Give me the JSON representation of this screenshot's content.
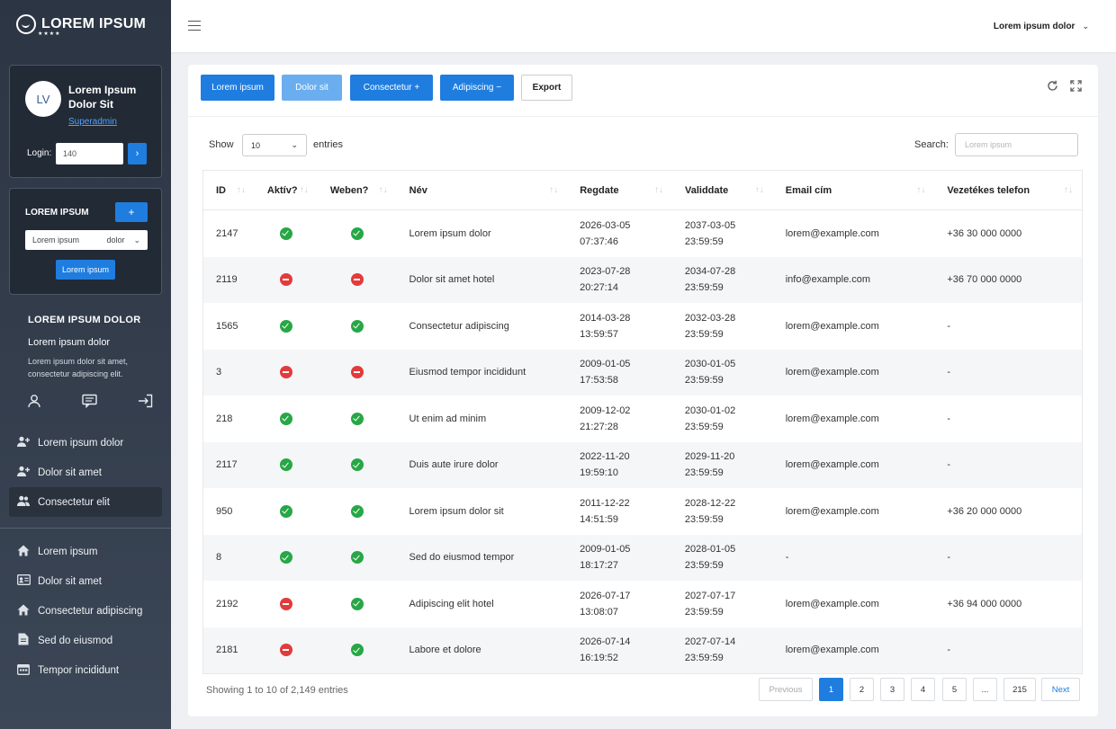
{
  "brand": {
    "name": "LOREM IPSUM",
    "stars": "★★★★"
  },
  "profile": {
    "initials": "LV",
    "name": "Lorem Ipsum Dolor Sit",
    "role": "Superadmin",
    "login_label": "Login:",
    "login_value": "140",
    "login_go": "›"
  },
  "filter": {
    "title": "LOREM IPSUM",
    "add_label": "+",
    "select_left": "Lorem ipsum",
    "select_right": "dolor",
    "button": "Lorem ipsum"
  },
  "side_info": {
    "heading": "LOREM IPSUM DOLOR",
    "sub": "Lorem ipsum dolor",
    "desc": "Lorem ipsum dolor sit amet, consectetur adipiscing elit."
  },
  "side_icons": [
    "user-icon",
    "message-icon",
    "logout-icon"
  ],
  "nav_top": [
    {
      "label": "Lorem ipsum dolor",
      "icon": "user-plus-icon",
      "active": false
    },
    {
      "label": "Dolor sit amet",
      "icon": "user-plus-icon",
      "active": false
    },
    {
      "label": "Consectetur elit",
      "icon": "users-icon",
      "active": true
    }
  ],
  "nav_bottom": [
    {
      "label": "Lorem ipsum",
      "icon": "home-icon"
    },
    {
      "label": "Dolor sit amet",
      "icon": "id-card-icon"
    },
    {
      "label": "Consectetur adipiscing",
      "icon": "home-icon"
    },
    {
      "label": "Sed do eiusmod",
      "icon": "document-icon"
    },
    {
      "label": "Tempor incididunt",
      "icon": "calendar-icon"
    }
  ],
  "topbar": {
    "user_menu": "Lorem ipsum dolor"
  },
  "toolbar": {
    "btn1": "Lorem ipsum",
    "btn2": "Dolor sit",
    "btn3": "Consectetur  +",
    "btn4": "Adipiscing  −",
    "btn5": "Export"
  },
  "table_controls": {
    "show_label": "Show",
    "page_size": "10",
    "entries_label": "entries",
    "search_label": "Search:",
    "search_placeholder": "Lorem ipsum"
  },
  "table": {
    "columns": [
      "ID",
      "Aktív?",
      "Weben?",
      "Név",
      "Regdate",
      "Validdate",
      "Email cím",
      "Vezetékes telefon"
    ],
    "rows": [
      {
        "id": "2147",
        "aktiv": true,
        "weben": true,
        "nev": "Lorem ipsum dolor",
        "reg_d": "2026-03-05",
        "reg_t": "07:37:46",
        "val_d": "2037-03-05",
        "val_t": "23:59:59",
        "email": "lorem@example.com",
        "phone": "+36 30 000 0000"
      },
      {
        "id": "2119",
        "aktiv": false,
        "weben": false,
        "nev": "Dolor sit amet hotel",
        "reg_d": "2023-07-28",
        "reg_t": "20:27:14",
        "val_d": "2034-07-28",
        "val_t": "23:59:59",
        "email": "info@example.com",
        "phone": "+36 70 000 0000"
      },
      {
        "id": "1565",
        "aktiv": true,
        "weben": true,
        "nev": "Consectetur adipiscing",
        "reg_d": "2014-03-28",
        "reg_t": "13:59:57",
        "val_d": "2032-03-28",
        "val_t": "23:59:59",
        "email": "lorem@example.com",
        "phone": "-"
      },
      {
        "id": "3",
        "aktiv": false,
        "weben": false,
        "nev": "Eiusmod tempor incididunt",
        "reg_d": "2009-01-05",
        "reg_t": "17:53:58",
        "val_d": "2030-01-05",
        "val_t": "23:59:59",
        "email": "lorem@example.com",
        "phone": "-"
      },
      {
        "id": "218",
        "aktiv": true,
        "weben": true,
        "nev": "Ut enim ad minim",
        "reg_d": "2009-12-02",
        "reg_t": "21:27:28",
        "val_d": "2030-01-02",
        "val_t": "23:59:59",
        "email": "lorem@example.com",
        "phone": "-"
      },
      {
        "id": "2117",
        "aktiv": true,
        "weben": true,
        "nev": "Duis aute irure dolor",
        "reg_d": "2022-11-20",
        "reg_t": "19:59:10",
        "val_d": "2029-11-20",
        "val_t": "23:59:59",
        "email": "lorem@example.com",
        "phone": "-"
      },
      {
        "id": "950",
        "aktiv": true,
        "weben": true,
        "nev": "Lorem ipsum dolor sit",
        "reg_d": "2011-12-22",
        "reg_t": "14:51:59",
        "val_d": "2028-12-22",
        "val_t": "23:59:59",
        "email": "lorem@example.com",
        "phone": "+36 20 000 0000"
      },
      {
        "id": "8",
        "aktiv": true,
        "weben": true,
        "nev": "Sed do eiusmod tempor",
        "reg_d": "2009-01-05",
        "reg_t": "18:17:27",
        "val_d": "2028-01-05",
        "val_t": "23:59:59",
        "email": "-",
        "phone": "-"
      },
      {
        "id": "2192",
        "aktiv": false,
        "weben": true,
        "nev": "Adipiscing elit hotel",
        "reg_d": "2026-07-17",
        "reg_t": "13:08:07",
        "val_d": "2027-07-17",
        "val_t": "23:59:59",
        "email": "lorem@example.com",
        "phone": "+36 94 000 0000"
      },
      {
        "id": "2181",
        "aktiv": false,
        "weben": true,
        "nev": "Labore et dolore",
        "reg_d": "2026-07-14",
        "reg_t": "16:19:52",
        "val_d": "2027-07-14",
        "val_t": "23:59:59",
        "email": "lorem@example.com",
        "phone": "-"
      }
    ]
  },
  "footer": {
    "info": "Showing 1 to 10 of 2,149 entries",
    "prev": "Previous",
    "pages": [
      "1",
      "2",
      "3",
      "4",
      "5",
      "...",
      "215"
    ],
    "current_page": "1",
    "next": "Next"
  }
}
